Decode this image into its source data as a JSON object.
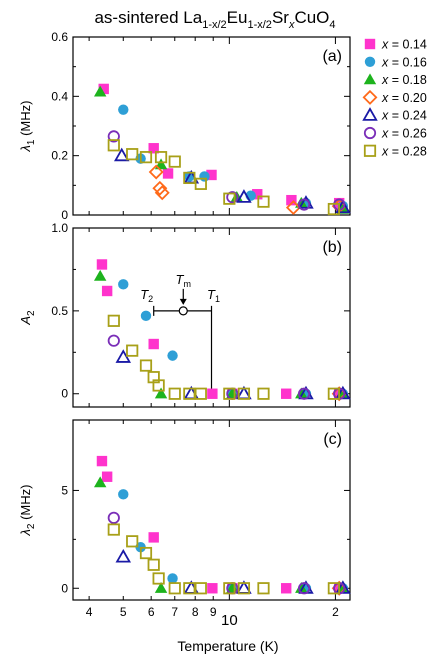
{
  "title": {
    "pre": "as-sintered La",
    "s1": "1-x/2",
    "m1": "Eu",
    "s2": "1-x/2",
    "m2": "Sr",
    "s3": "x",
    "m3": "CuO",
    "s4": "4"
  },
  "xlabel": "Temperature (K)",
  "chart_data": {
    "type": "scatter",
    "xscale": "log",
    "xlim": [
      3.6,
      22
    ],
    "x_ticks": [
      {
        "v": 4,
        "t": "4"
      },
      {
        "v": 5,
        "t": "5"
      },
      {
        "v": 6,
        "t": "6"
      },
      {
        "v": 7,
        "t": "7"
      },
      {
        "v": 8,
        "t": "8"
      },
      {
        "v": 9,
        "t": "9"
      },
      {
        "v": 10,
        "t": "10"
      },
      {
        "v": 20,
        "t": "2"
      }
    ],
    "legend": {
      "placement": "right of top panel",
      "entries": [
        {
          "label": "x = 0.14",
          "marker": "square-filled",
          "color": "#ff33cc"
        },
        {
          "label": "x = 0.16",
          "marker": "circle-filled",
          "color": "#2e9fd6"
        },
        {
          "label": "x = 0.18",
          "marker": "triangle-filled",
          "color": "#1db31d"
        },
        {
          "label": "x = 0.20",
          "marker": "diamond-open",
          "color": "#ff6a1a"
        },
        {
          "label": "x = 0.24",
          "marker": "triangle-open",
          "color": "#1a1aa6"
        },
        {
          "label": "x = 0.26",
          "marker": "circle-open",
          "color": "#7a2eb8"
        },
        {
          "label": "x = 0.28",
          "marker": "square-open",
          "color": "#a8a018"
        }
      ]
    },
    "panels": [
      {
        "tag": "(a)",
        "ylabel_main": "λ",
        "ylabel_sub": "1",
        "ylabel_unit": " (MHz)",
        "ylim": [
          0,
          0.6
        ],
        "y_ticks": [
          {
            "v": 0,
            "t": "0"
          },
          {
            "v": 0.2,
            "t": "0.2"
          },
          {
            "v": 0.4,
            "t": "0.4"
          },
          {
            "v": 0.6,
            "t": "0.6"
          }
        ],
        "series": [
          {
            "name": "x = 0.14",
            "points": [
              [
                4.4,
                0.425
              ],
              [
                6.1,
                0.225
              ],
              [
                6.7,
                0.14
              ],
              [
                8.9,
                0.135
              ],
              [
                12,
                0.07
              ],
              [
                15,
                0.05
              ],
              [
                20.5,
                0.04
              ]
            ]
          },
          {
            "name": "x = 0.16",
            "points": [
              [
                5,
                0.355
              ],
              [
                5.6,
                0.19
              ],
              [
                7.7,
                0.13
              ],
              [
                8.5,
                0.13
              ],
              [
                11.5,
                0.065
              ],
              [
                16.5,
                0.04
              ],
              [
                21,
                0.03
              ]
            ]
          },
          {
            "name": "x = 0.18",
            "points": [
              [
                4.3,
                0.415
              ],
              [
                6.4,
                0.17
              ],
              [
                10.5,
                0.06
              ],
              [
                16,
                0.04
              ],
              [
                21,
                0.02
              ]
            ]
          },
          {
            "name": "x = 0.20",
            "points": [
              [
                6.2,
                0.145
              ],
              [
                6.35,
                0.09
              ],
              [
                6.45,
                0.075
              ],
              [
                15.2,
                0.025
              ],
              [
                20.5,
                0.03
              ]
            ]
          },
          {
            "name": "x = 0.24",
            "points": [
              [
                4.95,
                0.2
              ],
              [
                7.8,
                0.125
              ],
              [
                11,
                0.06
              ],
              [
                16.5,
                0.04
              ],
              [
                21,
                0.025
              ]
            ]
          },
          {
            "name": "x = 0.26",
            "points": [
              [
                4.7,
                0.265
              ],
              [
                10.2,
                0.06
              ],
              [
                16.3,
                0.035
              ],
              [
                20.5,
                0.035
              ]
            ]
          },
          {
            "name": "x = 0.28",
            "points": [
              [
                4.7,
                0.235
              ],
              [
                5.3,
                0.205
              ],
              [
                5.8,
                0.195
              ],
              [
                6.4,
                0.195
              ],
              [
                7,
                0.18
              ],
              [
                7.7,
                0.125
              ],
              [
                8.3,
                0.105
              ],
              [
                10,
                0.055
              ],
              [
                12.5,
                0.045
              ],
              [
                19.8,
                0.02
              ]
            ]
          }
        ]
      },
      {
        "tag": "(b)",
        "ylabel_main": "A",
        "ylabel_sub": "2",
        "ylabel_unit": "",
        "ylim": [
          -0.08,
          1.0
        ],
        "y_ticks": [
          {
            "v": 0,
            "t": "0"
          },
          {
            "v": 0.5,
            "t": "0.5"
          },
          {
            "v": 1.0,
            "t": "1.0"
          }
        ],
        "series": [
          {
            "name": "x = 0.14",
            "points": [
              [
                4.35,
                0.78
              ],
              [
                4.5,
                0.62
              ],
              [
                6.1,
                0.3
              ],
              [
                8.95,
                0.0
              ],
              [
                10.2,
                0.0
              ],
              [
                14.5,
                0.0
              ],
              [
                20.5,
                0.0
              ]
            ]
          },
          {
            "name": "x = 0.16",
            "points": [
              [
                5,
                0.66
              ],
              [
                5.8,
                0.47
              ],
              [
                6.9,
                0.23
              ],
              [
                10.2,
                0.0
              ],
              [
                16.5,
                0.0
              ],
              [
                21,
                0.0
              ]
            ]
          },
          {
            "name": "x = 0.18",
            "points": [
              [
                4.3,
                0.71
              ],
              [
                6.4,
                0.0
              ],
              [
                10.2,
                0.0
              ],
              [
                16,
                0.0
              ],
              [
                21,
                0.0
              ]
            ]
          },
          {
            "name": "x = 0.20",
            "points": [
              [
                20.5,
                0.0
              ]
            ]
          },
          {
            "name": "x = 0.24",
            "points": [
              [
                5,
                0.22
              ],
              [
                7.8,
                0.0
              ],
              [
                11,
                0.0
              ],
              [
                16.5,
                0.0
              ],
              [
                21,
                0.0
              ]
            ]
          },
          {
            "name": "x = 0.26",
            "points": [
              [
                4.7,
                0.32
              ],
              [
                10.2,
                0.0
              ],
              [
                16.3,
                0.0
              ],
              [
                20.5,
                0.0
              ]
            ]
          },
          {
            "name": "x = 0.28",
            "points": [
              [
                4.7,
                0.44
              ],
              [
                5.3,
                0.26
              ],
              [
                5.8,
                0.17
              ],
              [
                6.1,
                0.1
              ],
              [
                6.3,
                0.05
              ],
              [
                7,
                0.0
              ],
              [
                7.7,
                0.0
              ],
              [
                8.3,
                0.0
              ],
              [
                10,
                0.0
              ],
              [
                11,
                0.0
              ],
              [
                12.5,
                0.0
              ],
              [
                19.8,
                0.0
              ]
            ]
          }
        ],
        "annotation": {
          "tm_label": "T",
          "tm_sub": "m",
          "t1_label": "T",
          "t1_sub": "1",
          "t2_label": "T",
          "t2_sub": "2",
          "t2": 6.1,
          "tm": 7.4,
          "t1": 8.9,
          "y": 0.5
        }
      },
      {
        "tag": "(c)",
        "ylabel_main": "λ",
        "ylabel_sub": "2",
        "ylabel_unit": " (MHz)",
        "ylim": [
          -0.6,
          8.6
        ],
        "y_ticks": [
          {
            "v": 0,
            "t": "0"
          },
          {
            "v": 5,
            "t": "5"
          }
        ],
        "series": [
          {
            "name": "x = 0.14",
            "points": [
              [
                4.35,
                6.5
              ],
              [
                4.5,
                5.7
              ],
              [
                6.1,
                2.6
              ],
              [
                8.95,
                0.0
              ],
              [
                10.2,
                0.0
              ],
              [
                14.5,
                0.0
              ],
              [
                20.5,
                0.0
              ]
            ]
          },
          {
            "name": "x = 0.16",
            "points": [
              [
                5,
                4.8
              ],
              [
                5.6,
                2.1
              ],
              [
                6.9,
                0.5
              ],
              [
                10.2,
                0.0
              ],
              [
                16.5,
                0.0
              ],
              [
                21,
                0.0
              ]
            ]
          },
          {
            "name": "x = 0.18",
            "points": [
              [
                4.3,
                5.4
              ],
              [
                6.4,
                0.0
              ],
              [
                10.2,
                0.0
              ],
              [
                16,
                0.0
              ],
              [
                21,
                0.0
              ]
            ]
          },
          {
            "name": "x = 0.20",
            "points": [
              [
                20.5,
                0.0
              ]
            ]
          },
          {
            "name": "x = 0.24",
            "points": [
              [
                5,
                1.6
              ],
              [
                7.8,
                0.0
              ],
              [
                11,
                0.0
              ],
              [
                16.5,
                0.0
              ],
              [
                21,
                0.0
              ]
            ]
          },
          {
            "name": "x = 0.26",
            "points": [
              [
                4.7,
                3.6
              ],
              [
                10.2,
                0.0
              ],
              [
                16.3,
                0.0
              ],
              [
                20.5,
                0.0
              ]
            ]
          },
          {
            "name": "x = 0.28",
            "points": [
              [
                4.7,
                3.0
              ],
              [
                5.3,
                2.4
              ],
              [
                5.8,
                1.8
              ],
              [
                6.1,
                1.2
              ],
              [
                6.3,
                0.5
              ],
              [
                7,
                0.0
              ],
              [
                7.7,
                0.0
              ],
              [
                8.3,
                0.0
              ],
              [
                10,
                0.0
              ],
              [
                11,
                0.0
              ],
              [
                12.5,
                0.0
              ],
              [
                19.8,
                0.0
              ]
            ]
          }
        ]
      }
    ]
  }
}
